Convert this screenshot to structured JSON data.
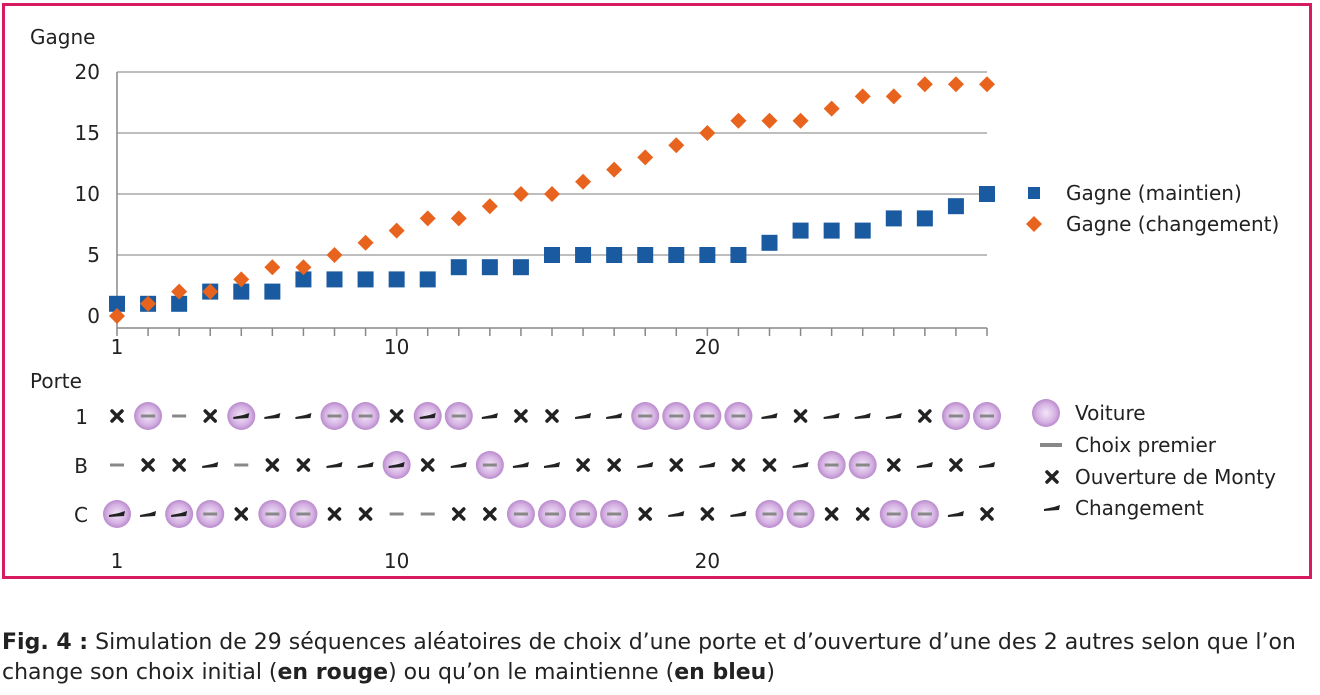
{
  "chart_data": [
    {
      "type": "scatter",
      "ylabel": "Gagne",
      "ylim": [
        0,
        20
      ],
      "yticks": [
        0,
        5,
        10,
        15,
        20
      ],
      "xlim": [
        1,
        29
      ],
      "xticks": [
        1,
        10,
        20
      ],
      "grid": "horizontal",
      "legend_position": "right",
      "x": [
        1,
        2,
        3,
        4,
        5,
        6,
        7,
        8,
        9,
        10,
        11,
        12,
        13,
        14,
        15,
        16,
        17,
        18,
        19,
        20,
        21,
        22,
        23,
        24,
        25,
        26,
        27,
        28,
        29
      ],
      "series": [
        {
          "name": "Gagne (maintien)",
          "color": "#1a5aa0",
          "marker": "square",
          "values": [
            1,
            1,
            1,
            2,
            2,
            2,
            3,
            3,
            3,
            3,
            3,
            4,
            4,
            4,
            5,
            5,
            5,
            5,
            5,
            5,
            5,
            6,
            7,
            7,
            7,
            8,
            8,
            9,
            10
          ]
        },
        {
          "name": "Gagne (changement)",
          "color": "#e8641e",
          "marker": "diamond",
          "values": [
            0,
            1,
            2,
            2,
            3,
            4,
            4,
            5,
            6,
            7,
            8,
            8,
            9,
            10,
            10,
            11,
            12,
            13,
            14,
            15,
            16,
            16,
            16,
            17,
            18,
            18,
            19,
            19,
            19
          ]
        }
      ]
    },
    {
      "type": "table",
      "ylabel": "Porte",
      "rows": [
        "1",
        "B",
        "C"
      ],
      "xticks": [
        1,
        10,
        20
      ],
      "legend_position": "right",
      "legend": [
        {
          "symbol": "car",
          "label": "Voiture"
        },
        {
          "symbol": "first",
          "label": "Choix premier"
        },
        {
          "symbol": "x",
          "label": "Ouverture de Monty"
        },
        {
          "symbol": "arrow",
          "label": "Changement"
        }
      ],
      "columns": [
        {
          "car": 2,
          "x": 0,
          "arrow": 2
        },
        {
          "car": 0,
          "x": 1,
          "arrow": 2
        },
        {
          "car": 2,
          "x": 1,
          "arrow": 2
        },
        {
          "car": 2,
          "x": 0,
          "arrow": 1
        },
        {
          "car": 0,
          "x": 2,
          "arrow": 0
        },
        {
          "car": 2,
          "x": 1,
          "arrow": 0
        },
        {
          "car": 2,
          "x": 1,
          "arrow": 0
        },
        {
          "car": 0,
          "x": 2,
          "arrow": 1
        },
        {
          "car": 0,
          "x": 2,
          "arrow": 1
        },
        {
          "car": 1,
          "x": 0,
          "arrow": 1
        },
        {
          "car": 0,
          "x": 1,
          "arrow": 0
        },
        {
          "car": 0,
          "x": 2,
          "arrow": 1
        },
        {
          "car": 1,
          "x": 2,
          "arrow": 0
        },
        {
          "car": 2,
          "x": 0,
          "arrow": 1
        },
        {
          "car": 2,
          "x": 0,
          "arrow": 1
        },
        {
          "car": 2,
          "x": 1,
          "arrow": 0
        },
        {
          "car": 2,
          "x": 1,
          "arrow": 0
        },
        {
          "car": 0,
          "x": 2,
          "arrow": 1
        },
        {
          "car": 0,
          "x": 1,
          "arrow": 2
        },
        {
          "car": 0,
          "x": 2,
          "arrow": 1
        },
        {
          "car": 0,
          "x": 1,
          "arrow": 2
        },
        {
          "car": 2,
          "x": 1,
          "arrow": 0
        },
        {
          "car": 2,
          "x": 0,
          "arrow": 1
        },
        {
          "car": 1,
          "x": 2,
          "arrow": 0
        },
        {
          "car": 1,
          "x": 2,
          "arrow": 0
        },
        {
          "car": 2,
          "x": 1,
          "arrow": 0
        },
        {
          "car": 2,
          "x": 0,
          "arrow": 1
        },
        {
          "car": 0,
          "x": 1,
          "arrow": 2
        },
        {
          "car": 0,
          "x": 2,
          "arrow": 1
        }
      ]
    }
  ],
  "caption": {
    "fig_label": "Fig. 4 :",
    "text_1": " Simulation de 29 séquences aléatoires de choix d’une porte et d’ouverture d’une des 2 autres selon que l’on change son choix initial (",
    "bold_1": "en rouge",
    "text_2": ") ou qu’on le maintienne (",
    "bold_2": "en bleu",
    "text_3": ")"
  },
  "colors": {
    "frame": "#d81b60",
    "maintien": "#1a5aa0",
    "changement": "#e8641e",
    "car": "#c9a3d9",
    "grid": "#a8a8a8"
  }
}
